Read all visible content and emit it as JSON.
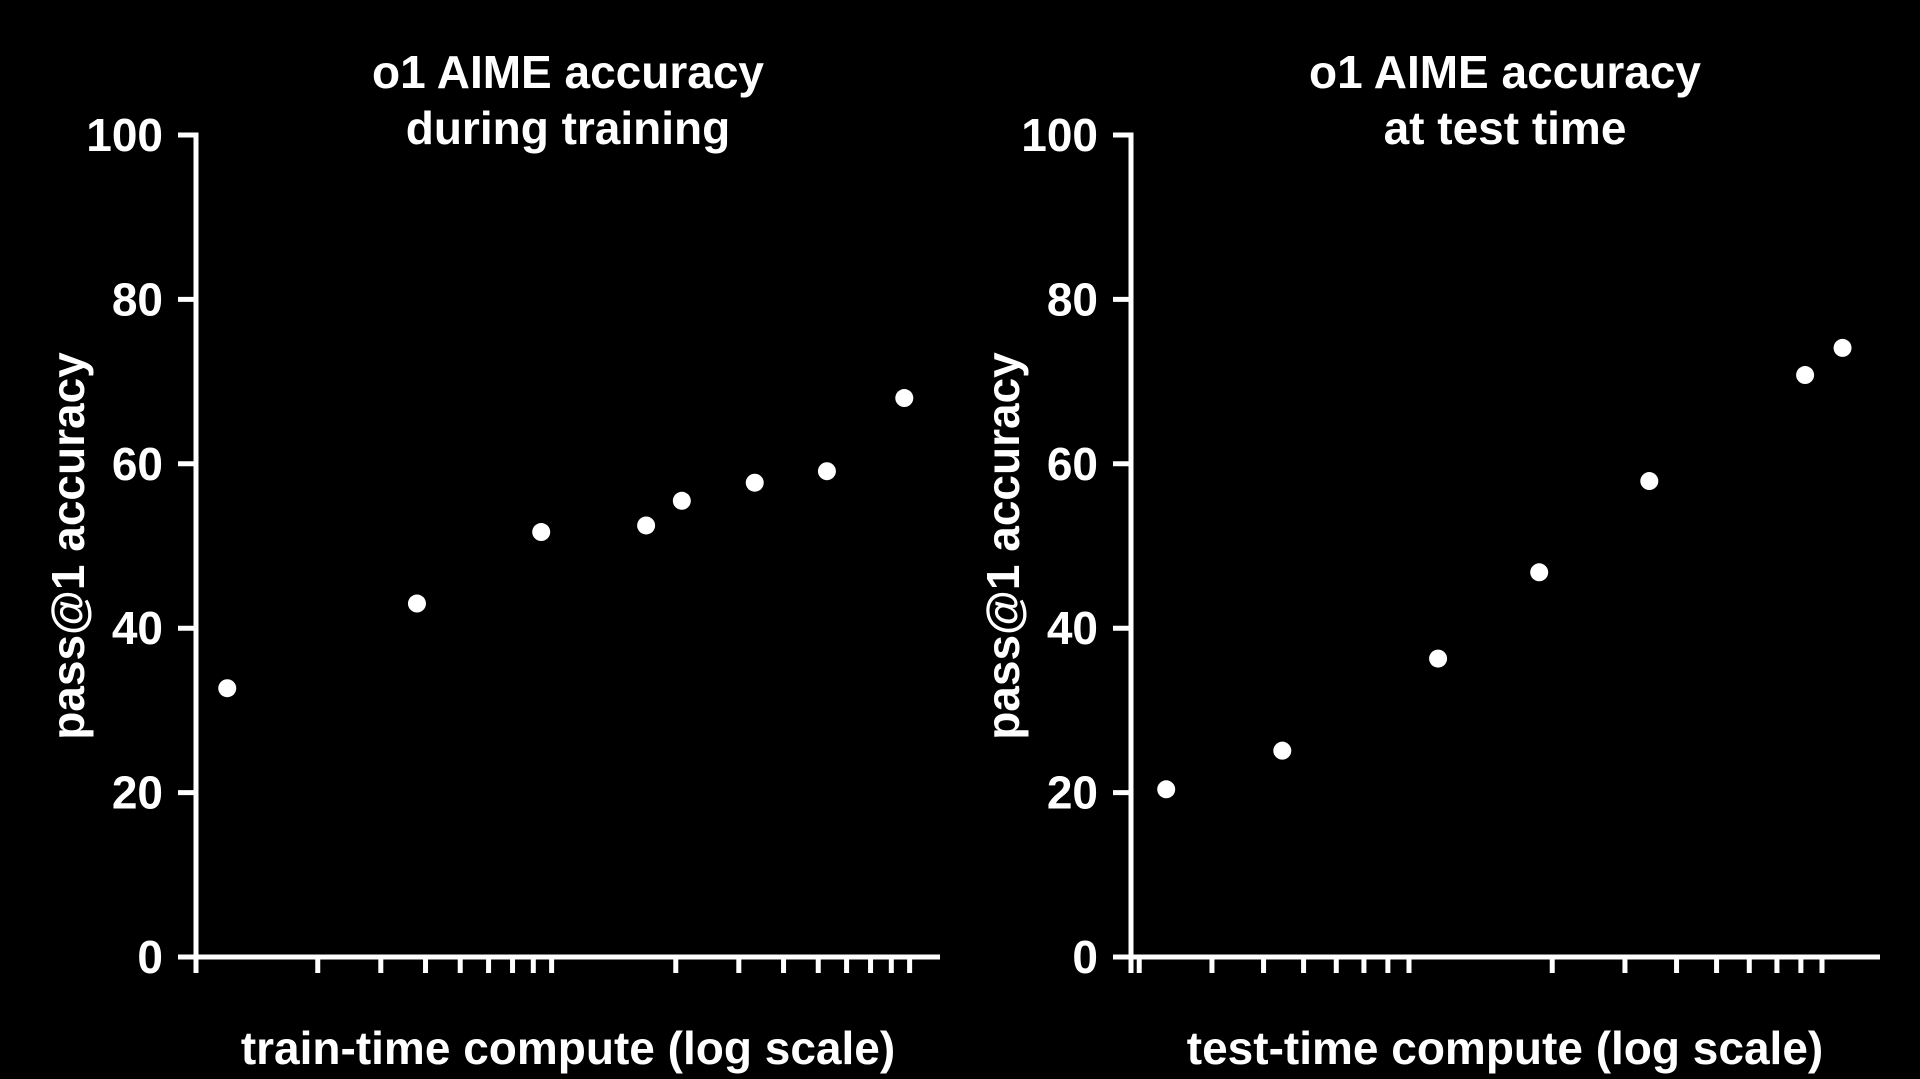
{
  "page": {
    "background_color": "#000000",
    "text_color": "#ffffff",
    "marker_color": "#ffffff",
    "axis_color": "#ffffff"
  },
  "chart_data": [
    {
      "type": "scatter",
      "title_lines": [
        "o1 AIME accuracy",
        "during training"
      ],
      "xlabel": "train-time compute (log scale)",
      "ylabel": "pass@1 accuracy",
      "ylim": [
        0,
        100
      ],
      "y_ticks": [
        0,
        20,
        40,
        60,
        80,
        100
      ],
      "grid": false,
      "legend": null,
      "x_axis": {
        "scale": "log",
        "labeled_ticks": false,
        "decade_start_frac": 0.0188,
        "decade_width_frac": 0.4812,
        "minor_tick_steps": [
          2,
          3,
          4,
          5,
          6,
          7,
          8,
          9
        ]
      },
      "points": [
        {
          "x_frac": 0.042,
          "y": 32.7
        },
        {
          "x_frac": 0.297,
          "y": 43.0
        },
        {
          "x_frac": 0.464,
          "y": 51.7
        },
        {
          "x_frac": 0.605,
          "y": 52.5
        },
        {
          "x_frac": 0.653,
          "y": 55.5
        },
        {
          "x_frac": 0.751,
          "y": 57.7
        },
        {
          "x_frac": 0.848,
          "y": 59.1
        },
        {
          "x_frac": 0.952,
          "y": 68.0
        }
      ]
    },
    {
      "type": "scatter",
      "title_lines": [
        "o1 AIME accuracy",
        "at test time"
      ],
      "xlabel": "test-time compute (log scale)",
      "ylabel": "pass@1 accuracy",
      "ylim": [
        0,
        100
      ],
      "y_ticks": [
        0,
        20,
        40,
        60,
        80,
        100
      ],
      "grid": false,
      "legend": null,
      "x_axis": {
        "scale": "log",
        "labeled_ticks": false,
        "decade_start_frac": -0.155,
        "decade_width_frac": 0.5514,
        "minor_tick_steps": [
          2,
          3,
          4,
          5,
          6,
          7,
          8,
          9
        ]
      },
      "points": [
        {
          "x_frac": 0.047,
          "y": 20.4
        },
        {
          "x_frac": 0.202,
          "y": 25.1
        },
        {
          "x_frac": 0.41,
          "y": 36.3
        },
        {
          "x_frac": 0.545,
          "y": 46.8
        },
        {
          "x_frac": 0.692,
          "y": 57.9
        },
        {
          "x_frac": 0.9,
          "y": 70.8
        },
        {
          "x_frac": 0.95,
          "y": 74.1
        }
      ]
    }
  ]
}
